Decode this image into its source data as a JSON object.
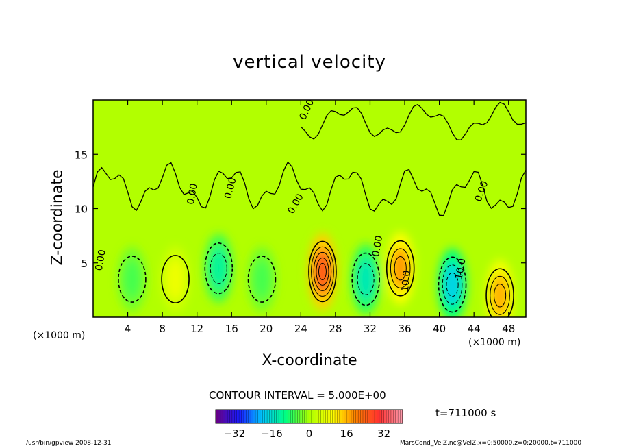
{
  "chart_data": {
    "type": "heatmap",
    "title": "vertical velocity",
    "xlabel": "X-coordinate",
    "ylabel": "Z-coordinate",
    "x_unit_note": "(×1000 m)",
    "y_unit_note": "(×1000 m)",
    "xlim": [
      0,
      50
    ],
    "ylim": [
      0,
      20
    ],
    "x_ticks": [
      4,
      8,
      12,
      16,
      20,
      24,
      28,
      32,
      36,
      40,
      44,
      48
    ],
    "y_ticks": [
      5,
      10,
      15
    ],
    "contour_interval_text": "CONTOUR INTERVAL = 5.000E+00",
    "contour_labels": [
      "0.00",
      "0.00",
      "0.00",
      "0.00",
      "0.00",
      "0.00",
      "10.0",
      "10.0",
      "0.00"
    ],
    "colorbar": {
      "range": [
        -40,
        40
      ],
      "ticks": [
        -32,
        -16,
        0,
        16,
        32
      ],
      "colors": [
        "#6a0080",
        "#1a1aff",
        "#00c8ff",
        "#00ff80",
        "#aaff00",
        "#ffff00",
        "#ff8000",
        "#ff3030",
        "#ff9fb0"
      ]
    },
    "features": [
      {
        "x": 4.5,
        "z": 3.5,
        "value": -6
      },
      {
        "x": 9.5,
        "z": 3.5,
        "value": 8
      },
      {
        "x": 14.5,
        "z": 4.5,
        "value": -12
      },
      {
        "x": 19.5,
        "z": 3.5,
        "value": -6
      },
      {
        "x": 26.5,
        "z": 4.2,
        "value": 25
      },
      {
        "x": 31.5,
        "z": 3.5,
        "value": -14
      },
      {
        "x": 35.5,
        "z": 4.5,
        "value": 18
      },
      {
        "x": 41.5,
        "z": 3.0,
        "value": -18
      },
      {
        "x": 47.0,
        "z": 2.0,
        "value": 16
      }
    ],
    "time_label": "t=711000 s"
  },
  "footer": {
    "left": "/usr/bin/gpview   2008-12-31",
    "right": "MarsCond_VelZ.nc@VelZ,x=0:50000,z=0:20000,t=711000"
  }
}
